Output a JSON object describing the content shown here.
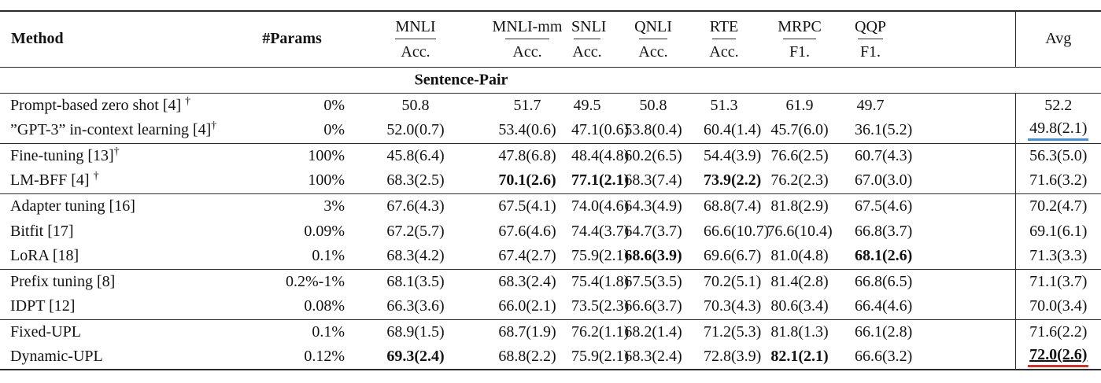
{
  "table": {
    "header": {
      "method": "Method",
      "params": "#Params",
      "metrics": [
        {
          "name": "MNLI",
          "metric": "Acc."
        },
        {
          "name": "MNLI-mm",
          "metric": "Acc."
        },
        {
          "name": "SNLI",
          "metric": "Acc."
        },
        {
          "name": "QNLI",
          "metric": "Acc."
        },
        {
          "name": "RTE",
          "metric": "Acc."
        },
        {
          "name": "MRPC",
          "metric": "F1."
        },
        {
          "name": "QQP",
          "metric": "F1."
        }
      ],
      "avg": "Avg"
    },
    "section": "Sentence-Pair",
    "groups": [
      {
        "rows": [
          {
            "method": "Prompt-based zero shot [4] ",
            "sup": "†",
            "params": "0%",
            "cells": [
              {
                "v": "50.8"
              },
              {
                "v": "51.7"
              },
              {
                "v": "49.5"
              },
              {
                "v": "50.8"
              },
              {
                "v": "51.3"
              },
              {
                "v": "61.9"
              },
              {
                "v": "49.7"
              }
            ],
            "avg": {
              "v": "52.2"
            }
          },
          {
            "method": "”GPT-3” in-context learning [4]",
            "sup": "†",
            "params": "0%",
            "cells": [
              {
                "v": "52.0(0.7)"
              },
              {
                "v": "53.4(0.6)"
              },
              {
                "v": "47.1(0.6)"
              },
              {
                "v": "53.8(0.4)"
              },
              {
                "v": "60.4(1.4)"
              },
              {
                "v": "45.7(6.0)"
              },
              {
                "v": "36.1(5.2)"
              }
            ],
            "avg": {
              "v": "49.8(2.1)",
              "underline": "blue"
            }
          }
        ]
      },
      {
        "rows": [
          {
            "method": "Fine-tuning [13]",
            "sup": "†",
            "params": "100%",
            "cells": [
              {
                "v": "45.8(6.4)"
              },
              {
                "v": "47.8(6.8)"
              },
              {
                "v": "48.4(4.8)"
              },
              {
                "v": "60.2(6.5)"
              },
              {
                "v": "54.4(3.9)"
              },
              {
                "v": "76.6(2.5)"
              },
              {
                "v": "60.7(4.3)"
              }
            ],
            "avg": {
              "v": "56.3(5.0)"
            }
          },
          {
            "method": "LM-BFF [4] ",
            "sup": "†",
            "params": "100%",
            "cells": [
              {
                "v": "68.3(2.5)"
              },
              {
                "v": "70.1(2.6)",
                "b": true
              },
              {
                "v": "77.1(2.1)",
                "b": true
              },
              {
                "v": "68.3(7.4)"
              },
              {
                "v": "73.9(2.2)",
                "b": true
              },
              {
                "v": "76.2(2.3)"
              },
              {
                "v": "67.0(3.0)"
              }
            ],
            "avg": {
              "v": "71.6(3.2)"
            }
          }
        ]
      },
      {
        "rows": [
          {
            "method": "Adapter tuning [16]",
            "sup": "",
            "params": "3%",
            "cells": [
              {
                "v": "67.6(4.3)"
              },
              {
                "v": "67.5(4.1)"
              },
              {
                "v": "74.0(4.6)"
              },
              {
                "v": "64.3(4.9)"
              },
              {
                "v": "68.8(7.4)"
              },
              {
                "v": "81.8(2.9)"
              },
              {
                "v": "67.5(4.6)"
              }
            ],
            "avg": {
              "v": "70.2(4.7)"
            }
          },
          {
            "method": "Bitfit [17]",
            "sup": "",
            "params": "0.09%",
            "cells": [
              {
                "v": "67.2(5.7)"
              },
              {
                "v": "67.6(4.6)"
              },
              {
                "v": "74.4(3.7)"
              },
              {
                "v": "64.7(3.7)"
              },
              {
                "v": "66.6(10.7)"
              },
              {
                "v": "76.6(10.4)"
              },
              {
                "v": "66.8(3.7)"
              }
            ],
            "avg": {
              "v": "69.1(6.1)"
            }
          },
          {
            "method": "LoRA [18]",
            "sup": "",
            "params": "0.1%",
            "cells": [
              {
                "v": "68.3(4.2)"
              },
              {
                "v": "67.4(2.7)"
              },
              {
                "v": "75.9(2.1)"
              },
              {
                "v": "68.6(3.9)",
                "b": true
              },
              {
                "v": "69.6(6.7)"
              },
              {
                "v": "81.0(4.8)"
              },
              {
                "v": "68.1(2.6)",
                "b": true
              }
            ],
            "avg": {
              "v": "71.3(3.3)"
            }
          }
        ]
      },
      {
        "rows": [
          {
            "method": "Prefix tuning [8]",
            "sup": "",
            "params": "0.2%-1%",
            "cells": [
              {
                "v": "68.1(3.5)"
              },
              {
                "v": "68.3(2.4)"
              },
              {
                "v": "75.4(1.8)"
              },
              {
                "v": "67.5(3.5)"
              },
              {
                "v": "70.2(5.1)"
              },
              {
                "v": "81.4(2.8)"
              },
              {
                "v": "66.8(6.5)"
              }
            ],
            "avg": {
              "v": "71.1(3.7)"
            }
          },
          {
            "method": "IDPT [12]",
            "sup": "",
            "params": "0.08%",
            "cells": [
              {
                "v": "66.3(3.6)"
              },
              {
                "v": "66.0(2.1)"
              },
              {
                "v": "73.5(2.3)"
              },
              {
                "v": "66.6(3.7)"
              },
              {
                "v": "70.3(4.3)"
              },
              {
                "v": "80.6(3.4)"
              },
              {
                "v": "66.4(4.6)"
              }
            ],
            "avg": {
              "v": "70.0(3.4)"
            }
          }
        ]
      },
      {
        "rows": [
          {
            "method": "Fixed-UPL",
            "sup": "",
            "params": "0.1%",
            "cells": [
              {
                "v": "68.9(1.5)"
              },
              {
                "v": "68.7(1.9)"
              },
              {
                "v": "76.2(1.1)"
              },
              {
                "v": "68.2(1.4)"
              },
              {
                "v": "71.2(5.3)"
              },
              {
                "v": "81.8(1.3)"
              },
              {
                "v": "66.1(2.8)"
              }
            ],
            "avg": {
              "v": "71.6(2.2)"
            }
          },
          {
            "method": "Dynamic-UPL",
            "sup": "",
            "params": "0.12%",
            "cells": [
              {
                "v": "69.3(2.4)",
                "b": true
              },
              {
                "v": "68.8(2.2)"
              },
              {
                "v": "75.9(2.1)"
              },
              {
                "v": "68.3(2.4)"
              },
              {
                "v": "72.8(3.9)"
              },
              {
                "v": "82.1(2.1)",
                "b": true
              },
              {
                "v": "66.6(3.2)"
              }
            ],
            "avg": {
              "v": "72.0(2.6)",
              "b": true,
              "underline": "red",
              "black_underline": true
            }
          }
        ]
      }
    ]
  },
  "colors": {
    "underline_blue": "#4a8fd2",
    "underline_red": "#c9362c",
    "rule": "#2b2b2b"
  }
}
